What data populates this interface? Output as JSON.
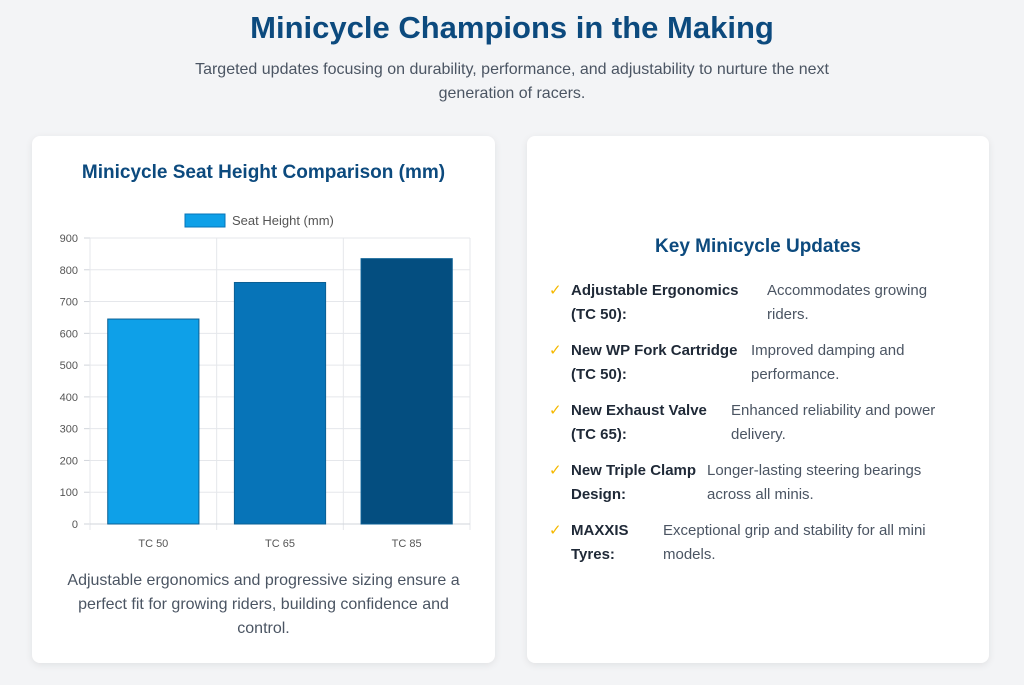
{
  "header": {
    "title": "Minicycle Champions in the Making",
    "subtitle": "Targeted updates focusing on durability, performance, and adjustability to nurture the next generation of racers."
  },
  "chart_card": {
    "title": "Minicycle Seat Height Comparison (mm)",
    "caption": "Adjustable ergonomics and progressive sizing ensure a perfect fit for growing riders, building confidence and control."
  },
  "chart_data": {
    "type": "bar",
    "title": "Minicycle Seat Height Comparison (mm)",
    "categories": [
      "TC 50",
      "TC 65",
      "TC 85"
    ],
    "series": [
      {
        "name": "Seat Height (mm)",
        "values": [
          645,
          760,
          835
        ]
      }
    ],
    "bar_colors": [
      "#0ea0e8",
      "#0774b8",
      "#044e80"
    ],
    "xlabel": "",
    "ylabel": "",
    "ylim": [
      0,
      900
    ],
    "yticks": [
      0,
      100,
      200,
      300,
      400,
      500,
      600,
      700,
      800,
      900
    ],
    "grid": true,
    "legend": "top"
  },
  "updates": {
    "title": "Key Minicycle Updates",
    "check_icon": "✓",
    "items": [
      {
        "label": "Adjustable Ergonomics (TC 50):",
        "desc": "Accommodates growing riders."
      },
      {
        "label": "New WP Fork Cartridge (TC 50):",
        "desc": "Improved damping and performance."
      },
      {
        "label": "New Exhaust Valve (TC 65):",
        "desc": "Enhanced reliability and power delivery."
      },
      {
        "label": "New Triple Clamp Design:",
        "desc": "Longer-lasting steering bearings across all minis."
      },
      {
        "label": "MAXXIS Tyres:",
        "desc": "Exceptional grip and stability for all mini models."
      }
    ]
  },
  "colors": {
    "accent": "#0c4a7e",
    "check": "#f5b800",
    "background": "#f3f4f6"
  }
}
